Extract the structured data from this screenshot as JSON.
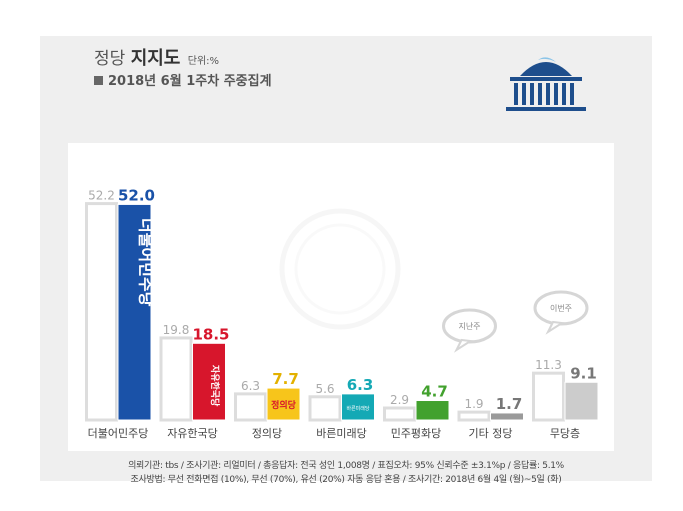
{
  "header": {
    "title_light": "정당",
    "title_bold": "지지도",
    "unit": "단위:%",
    "subtitle": "2018년 6월 1주차 주중집계"
  },
  "chart_data": {
    "type": "bar",
    "categories": [
      "더불어민주당",
      "자유한국당",
      "정의당",
      "바른미래당",
      "민주평화당",
      "기타 정당",
      "무당층"
    ],
    "series": [
      {
        "values": [
          52.2,
          19.8,
          6.3,
          5.6,
          2.9,
          1.9,
          11.3
        ]
      },
      {
        "values": [
          52.0,
          18.5,
          7.7,
          6.3,
          4.7,
          1.7,
          9.1
        ]
      }
    ],
    "series_colors": [
      "#ffffff",
      "#1a52a8"
    ],
    "category_colors": [
      "#1a52a8",
      "#d7162c",
      "#f7c51b",
      "#14a9b5",
      "#42a12e",
      "#9a9a9a",
      "#cccccc"
    ],
    "label_colors": [
      "#1a52a8",
      "#d7162c",
      "#e3b100",
      "#14a9b5",
      "#42a12e",
      "#777777",
      "#777777"
    ],
    "bar_logos": [
      "더불어민주당",
      "자유한국당",
      "정의당",
      "바른미래당",
      "",
      "",
      ""
    ],
    "bubbles": {
      "기타 정당": "지난주",
      "무당층": "이번주"
    },
    "ylim": [
      0,
      55
    ],
    "grid": false
  },
  "footer": {
    "line1": "의뢰기관: tbs / 조사기관: 리얼미터 / 총응답자: 전국 성인 1,008명 / 표집오차: 95% 신뢰수준 ±3.1%p / 응답률: 5.1%",
    "line2": "조사방법: 무선 전화면접 (10%), 무선 (70%), 유선 (20%) 자동 응답 혼용 / 조사기간: 2018년 6월 4일 (월)~5일 (화)"
  }
}
